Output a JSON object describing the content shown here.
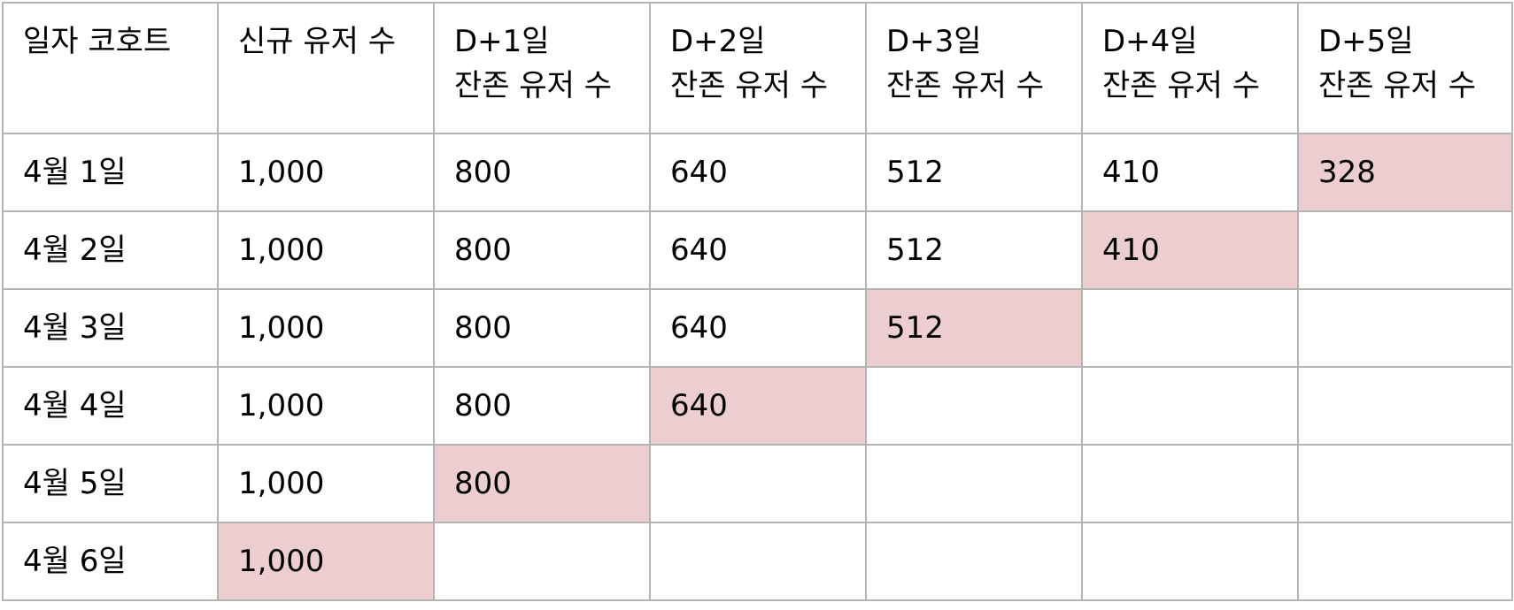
{
  "table": {
    "headers": [
      [
        "일자 코호트"
      ],
      [
        "신규 유저 수"
      ],
      [
        "D+1일",
        "잔존 유저 수"
      ],
      [
        "D+2일",
        "잔존 유저 수"
      ],
      [
        "D+3일",
        "잔존 유저 수"
      ],
      [
        "D+4일",
        "잔존 유저 수"
      ],
      [
        "D+5일",
        "잔존 유저 수"
      ]
    ],
    "rows": [
      {
        "cohort": "4월 1일",
        "cells": [
          "1,000",
          "800",
          "640",
          "512",
          "410",
          "328"
        ]
      },
      {
        "cohort": "4월 2일",
        "cells": [
          "1,000",
          "800",
          "640",
          "512",
          "410",
          ""
        ]
      },
      {
        "cohort": "4월 3일",
        "cells": [
          "1,000",
          "800",
          "640",
          "512",
          "",
          ""
        ]
      },
      {
        "cohort": "4월 4일",
        "cells": [
          "1,000",
          "800",
          "640",
          "",
          "",
          ""
        ]
      },
      {
        "cohort": "4월 5일",
        "cells": [
          "1,000",
          "800",
          "",
          "",
          "",
          ""
        ]
      },
      {
        "cohort": "4월 6일",
        "cells": [
          "1,000",
          "",
          "",
          "",
          "",
          ""
        ]
      }
    ],
    "highlight_color": "#eccdd0",
    "border_color": "#b5b5b5"
  }
}
